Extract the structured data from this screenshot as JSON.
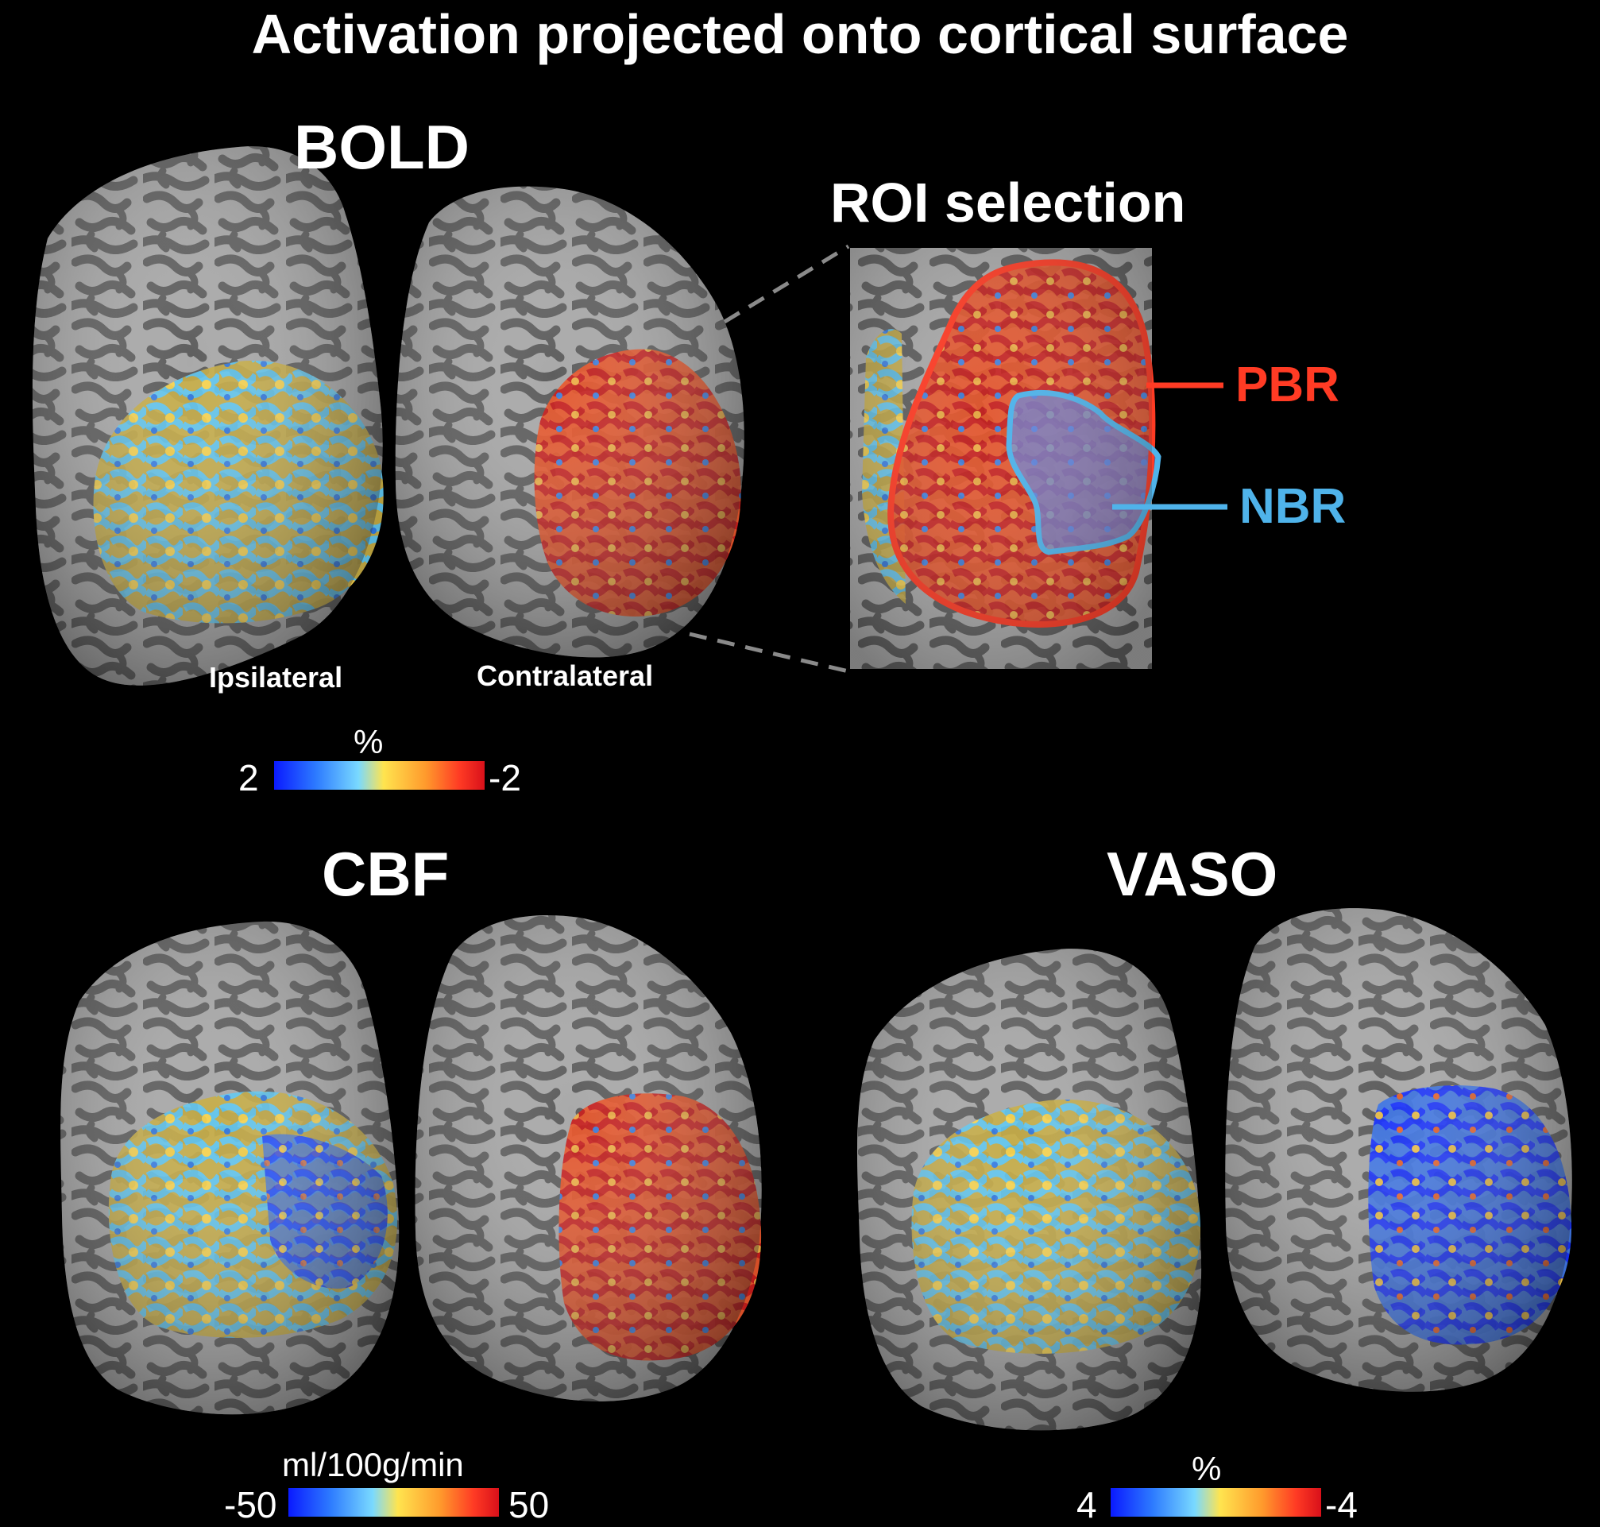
{
  "title": "Activation projected onto cortical surface",
  "panels": {
    "bold": {
      "title": "BOLD",
      "labels": {
        "ipsilateral": "Ipsilateral",
        "contralateral": "Contralateral"
      },
      "colorbar": {
        "unit": "%",
        "min_label": "2",
        "max_label": "-2"
      }
    },
    "roi": {
      "title": "ROI selection",
      "pbr_label": "PBR",
      "nbr_label": "NBR"
    },
    "cbf": {
      "title": "CBF",
      "colorbar": {
        "unit": "ml/100g/min",
        "min_label": "-50",
        "max_label": "50"
      }
    },
    "vaso": {
      "title": "VASO",
      "colorbar": {
        "unit": "%",
        "min_label": "4",
        "max_label": "-4"
      }
    }
  },
  "colors": {
    "background": "#000000",
    "cortex_light": "#a8a8a8",
    "cortex_dark": "#5f5f5f",
    "pbr_outline": "#ff3b24",
    "nbr_outline": "#4fb3ea",
    "colormap": [
      "#0a1aff",
      "#2d7bff",
      "#79d9ff",
      "#ffe44f",
      "#ff9a2c",
      "#ff3b24",
      "#d9101a"
    ]
  }
}
